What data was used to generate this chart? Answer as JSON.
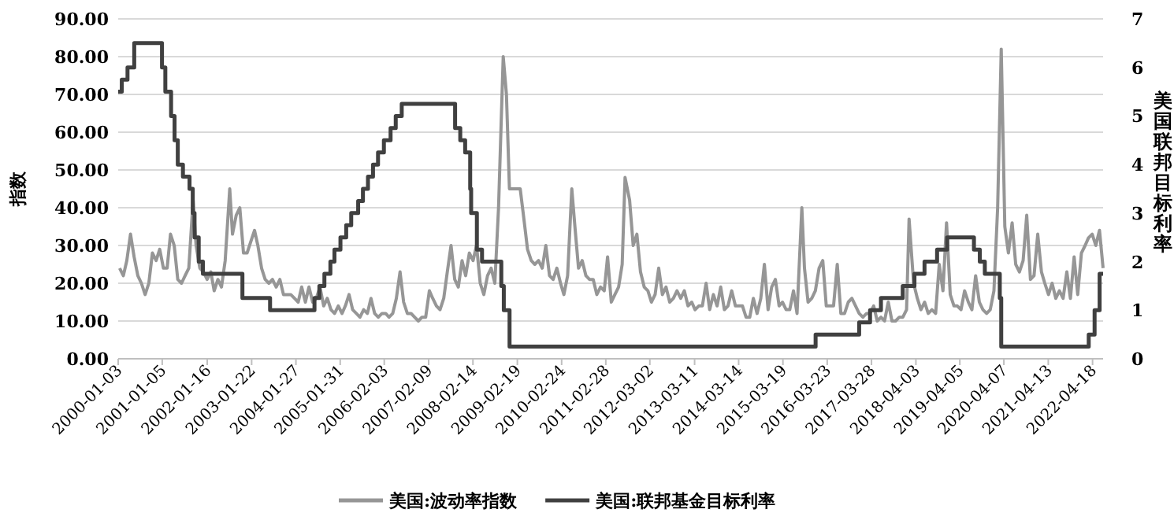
{
  "chart_data": {
    "type": "line",
    "ylabel": "指数",
    "y2label": "美国联邦目标利率",
    "grid": "y",
    "legend": "bottom",
    "marker": "none",
    "line_style": "solid",
    "xlim": [
      "2000-01-03",
      "2022-07-15"
    ],
    "xticks": [
      "2000-01-03",
      "2001-01-05",
      "2002-01-16",
      "2003-01-22",
      "2004-01-27",
      "2005-01-31",
      "2006-02-03",
      "2007-02-09",
      "2008-02-14",
      "2009-02-19",
      "2010-02-24",
      "2011-02-28",
      "2012-03-02",
      "2013-03-11",
      "2014-03-14",
      "2015-03-19",
      "2016-03-23",
      "2017-03-28",
      "2018-04-03",
      "2019-04-05",
      "2020-04-07",
      "2021-04-13",
      "2022-04-18"
    ],
    "ylim": [
      0,
      90
    ],
    "yticks": [
      {
        "value": 0,
        "label": "0.00"
      },
      {
        "value": 10,
        "label": "10.00"
      },
      {
        "value": 20,
        "label": "20.00"
      },
      {
        "value": 30,
        "label": "30.00"
      },
      {
        "value": 40,
        "label": "40.00"
      },
      {
        "value": 50,
        "label": "50.00"
      },
      {
        "value": 60,
        "label": "60.00"
      },
      {
        "value": 70,
        "label": "70.00"
      },
      {
        "value": 80,
        "label": "80.00"
      },
      {
        "value": 90,
        "label": "90.00"
      }
    ],
    "y2lim": [
      0,
      7
    ],
    "y2ticks": [
      0,
      1,
      2,
      3,
      4,
      5,
      6,
      7
    ],
    "series": [
      {
        "name": "美国:波动率指数",
        "color": "#969696",
        "x": [
          "2000-01-15",
          "2000-02-15",
          "2000-03-15",
          "2000-04-15",
          "2000-05-15",
          "2000-06-15",
          "2000-07-15",
          "2000-08-15",
          "2000-09-15",
          "2000-10-15",
          "2000-11-15",
          "2000-12-15",
          "2001-01-15",
          "2001-02-15",
          "2001-03-15",
          "2001-04-15",
          "2001-05-15",
          "2001-06-15",
          "2001-07-15",
          "2001-08-15",
          "2001-09-20",
          "2001-10-15",
          "2001-11-15",
          "2001-12-15",
          "2002-01-15",
          "2002-02-15",
          "2002-03-15",
          "2002-04-15",
          "2002-05-15",
          "2002-06-15",
          "2002-07-23",
          "2002-08-15",
          "2002-09-15",
          "2002-10-15",
          "2002-11-15",
          "2002-12-15",
          "2003-01-15",
          "2003-02-15",
          "2003-03-15",
          "2003-04-15",
          "2003-05-15",
          "2003-06-15",
          "2003-07-15",
          "2003-08-15",
          "2003-09-15",
          "2003-10-15",
          "2003-11-15",
          "2003-12-15",
          "2004-01-15",
          "2004-02-15",
          "2004-03-15",
          "2004-04-15",
          "2004-05-15",
          "2004-06-15",
          "2004-07-15",
          "2004-08-15",
          "2004-09-15",
          "2004-10-15",
          "2004-11-15",
          "2004-12-15",
          "2005-01-15",
          "2005-02-15",
          "2005-03-15",
          "2005-04-15",
          "2005-05-15",
          "2005-06-15",
          "2005-07-15",
          "2005-08-15",
          "2005-09-15",
          "2005-10-15",
          "2005-11-15",
          "2005-12-15",
          "2006-01-15",
          "2006-02-15",
          "2006-03-15",
          "2006-04-15",
          "2006-05-15",
          "2006-06-15",
          "2006-07-15",
          "2006-08-15",
          "2006-09-15",
          "2006-10-15",
          "2006-11-15",
          "2006-12-15",
          "2007-01-15",
          "2007-02-15",
          "2007-03-15",
          "2007-04-15",
          "2007-05-15",
          "2007-06-15",
          "2007-07-15",
          "2007-08-15",
          "2007-09-15",
          "2007-10-15",
          "2007-11-15",
          "2007-12-15",
          "2008-01-15",
          "2008-02-15",
          "2008-03-15",
          "2008-04-15",
          "2008-05-15",
          "2008-06-15",
          "2008-07-15",
          "2008-08-15",
          "2008-09-15",
          "2008-10-24",
          "2008-11-20",
          "2008-12-15",
          "2009-01-15",
          "2009-02-15",
          "2009-03-15",
          "2009-04-15",
          "2009-05-15",
          "2009-06-15",
          "2009-07-15",
          "2009-08-15",
          "2009-09-15",
          "2009-10-15",
          "2009-11-15",
          "2009-12-15",
          "2010-01-15",
          "2010-02-15",
          "2010-03-15",
          "2010-04-15",
          "2010-05-20",
          "2010-06-15",
          "2010-07-15",
          "2010-08-15",
          "2010-09-15",
          "2010-10-15",
          "2010-11-15",
          "2010-12-15",
          "2011-01-15",
          "2011-02-15",
          "2011-03-15",
          "2011-04-15",
          "2011-05-15",
          "2011-06-15",
          "2011-07-15",
          "2011-08-08",
          "2011-09-15",
          "2011-10-15",
          "2011-11-15",
          "2011-12-15",
          "2012-01-15",
          "2012-02-15",
          "2012-03-15",
          "2012-04-15",
          "2012-05-15",
          "2012-06-15",
          "2012-07-15",
          "2012-08-15",
          "2012-09-15",
          "2012-10-15",
          "2012-11-15",
          "2012-12-15",
          "2013-01-15",
          "2013-02-15",
          "2013-03-15",
          "2013-04-15",
          "2013-05-15",
          "2013-06-15",
          "2013-07-15",
          "2013-08-15",
          "2013-09-15",
          "2013-10-15",
          "2013-11-15",
          "2013-12-15",
          "2014-01-15",
          "2014-02-15",
          "2014-03-15",
          "2014-04-15",
          "2014-05-15",
          "2014-06-15",
          "2014-07-15",
          "2014-08-15",
          "2014-09-15",
          "2014-10-15",
          "2014-11-15",
          "2014-12-15",
          "2015-01-15",
          "2015-02-15",
          "2015-03-15",
          "2015-04-15",
          "2015-05-15",
          "2015-06-15",
          "2015-07-15",
          "2015-08-24",
          "2015-09-15",
          "2015-10-15",
          "2015-11-15",
          "2015-12-15",
          "2016-01-15",
          "2016-02-15",
          "2016-03-15",
          "2016-04-15",
          "2016-05-15",
          "2016-06-15",
          "2016-07-15",
          "2016-08-15",
          "2016-09-15",
          "2016-10-15",
          "2016-11-15",
          "2016-12-15",
          "2017-01-15",
          "2017-02-15",
          "2017-03-15",
          "2017-04-15",
          "2017-05-15",
          "2017-06-15",
          "2017-07-15",
          "2017-08-15",
          "2017-09-15",
          "2017-10-15",
          "2017-11-15",
          "2017-12-15",
          "2018-01-15",
          "2018-02-05",
          "2018-03-15",
          "2018-04-15",
          "2018-05-15",
          "2018-06-15",
          "2018-07-15",
          "2018-08-15",
          "2018-09-15",
          "2018-10-15",
          "2018-11-15",
          "2018-12-15",
          "2019-01-15",
          "2019-02-15",
          "2019-03-15",
          "2019-04-15",
          "2019-05-15",
          "2019-06-15",
          "2019-07-15",
          "2019-08-15",
          "2019-09-15",
          "2019-10-15",
          "2019-11-15",
          "2019-12-15",
          "2020-01-15",
          "2020-02-15",
          "2020-03-16",
          "2020-04-15",
          "2020-05-15",
          "2020-06-15",
          "2020-07-15",
          "2020-08-15",
          "2020-09-15",
          "2020-10-15",
          "2020-11-15",
          "2020-12-15",
          "2021-01-15",
          "2021-02-15",
          "2021-03-15",
          "2021-04-15",
          "2021-05-15",
          "2021-06-15",
          "2021-07-15",
          "2021-08-15",
          "2021-09-15",
          "2021-10-15",
          "2021-11-15",
          "2021-12-15",
          "2022-01-15",
          "2022-02-15",
          "2022-03-15",
          "2022-04-15",
          "2022-05-15",
          "2022-06-15",
          "2022-07-15"
        ],
        "values": [
          24,
          22,
          26,
          33,
          27,
          22,
          20,
          17,
          20,
          28,
          26,
          29,
          24,
          24,
          33,
          30,
          21,
          20,
          22,
          24,
          42,
          30,
          24,
          23,
          21,
          23,
          18,
          21,
          19,
          26,
          45,
          33,
          38,
          40,
          28,
          28,
          31,
          34,
          30,
          24,
          21,
          20,
          21,
          19,
          21,
          17,
          17,
          17,
          16,
          15,
          19,
          15,
          19,
          15,
          16,
          19,
          14,
          16,
          13,
          12,
          14,
          12,
          14,
          17,
          13,
          12,
          11,
          13,
          12,
          16,
          12,
          11,
          12,
          12,
          11,
          12,
          16,
          23,
          15,
          12,
          12,
          11,
          10,
          11,
          11,
          18,
          16,
          14,
          13,
          16,
          23,
          30,
          21,
          19,
          26,
          22,
          28,
          26,
          30,
          20,
          17,
          22,
          24,
          20,
          40,
          80,
          70,
          45,
          45,
          45,
          45,
          37,
          29,
          26,
          25,
          26,
          24,
          30,
          22,
          21,
          24,
          20,
          17,
          22,
          45,
          35,
          24,
          26,
          22,
          21,
          21,
          17,
          19,
          18,
          27,
          15,
          17,
          19,
          25,
          48,
          42,
          30,
          33,
          23,
          19,
          18,
          15,
          17,
          24,
          17,
          19,
          15,
          16,
          18,
          16,
          18,
          14,
          15,
          13,
          14,
          14,
          20,
          13,
          17,
          14,
          19,
          13,
          14,
          18,
          14,
          14,
          14,
          11,
          11,
          16,
          12,
          16,
          25,
          13,
          19,
          21,
          14,
          15,
          13,
          13,
          18,
          12,
          40,
          24,
          15,
          16,
          18,
          24,
          26,
          14,
          14,
          14,
          25,
          12,
          12,
          15,
          16,
          14,
          12,
          11,
          12,
          12,
          14,
          10,
          11,
          10,
          15,
          10,
          10,
          11,
          11,
          13,
          37,
          20,
          16,
          13,
          15,
          12,
          13,
          12,
          25,
          18,
          36,
          17,
          14,
          14,
          13,
          18,
          15,
          13,
          22,
          15,
          13,
          12,
          13,
          18,
          40,
          82,
          35,
          28,
          36,
          25,
          23,
          26,
          38,
          21,
          22,
          33,
          23,
          20,
          17,
          20,
          16,
          18,
          16,
          23,
          16,
          27,
          17,
          28,
          30,
          32,
          33,
          30,
          34,
          24
        ]
      },
      {
        "name": "美国:联邦基金目标利率",
        "color": "#404040",
        "type": "step",
        "axis": "y2",
        "x": [
          "2000-01-03",
          "2000-02-02",
          "2000-03-21",
          "2000-05-16",
          "2001-01-03",
          "2001-01-31",
          "2001-03-20",
          "2001-04-18",
          "2001-05-15",
          "2001-06-27",
          "2001-08-21",
          "2001-09-17",
          "2001-10-02",
          "2001-11-06",
          "2001-12-11",
          "2002-11-06",
          "2003-06-25",
          "2004-06-30",
          "2004-08-10",
          "2004-09-21",
          "2004-11-10",
          "2004-12-14",
          "2005-02-02",
          "2005-03-22",
          "2005-05-03",
          "2005-06-30",
          "2005-08-09",
          "2005-09-20",
          "2005-11-01",
          "2005-12-13",
          "2006-01-31",
          "2006-03-28",
          "2006-05-10",
          "2006-06-29",
          "2007-09-18",
          "2007-10-31",
          "2007-12-11",
          "2008-01-22",
          "2008-01-30",
          "2008-03-18",
          "2008-04-30",
          "2008-10-08",
          "2008-10-29",
          "2008-12-16",
          "2015-12-17",
          "2016-12-15",
          "2017-03-16",
          "2017-06-15",
          "2017-12-14",
          "2018-03-22",
          "2018-06-14",
          "2018-09-27",
          "2018-12-20",
          "2019-08-01",
          "2019-09-19",
          "2019-10-31",
          "2020-03-04",
          "2020-03-16",
          "2022-03-17",
          "2022-05-05",
          "2022-06-16",
          "2022-07-15"
        ],
        "values": [
          5.5,
          5.75,
          6,
          6.5,
          6,
          5.5,
          5,
          4.5,
          4,
          3.75,
          3.5,
          3,
          2.5,
          2,
          1.75,
          1.25,
          1,
          1.25,
          1.5,
          1.75,
          2,
          2.25,
          2.5,
          2.75,
          3,
          3.25,
          3.5,
          3.75,
          4,
          4.25,
          4.5,
          4.75,
          5,
          5.25,
          4.75,
          4.5,
          4.25,
          3.5,
          3,
          2.25,
          2,
          1.5,
          1,
          0.25,
          0.5,
          0.75,
          1,
          1.25,
          1.5,
          1.75,
          2,
          2.25,
          2.5,
          2.25,
          2,
          1.75,
          1.25,
          0.25,
          0.5,
          1,
          1.75,
          1.75
        ]
      }
    ]
  }
}
